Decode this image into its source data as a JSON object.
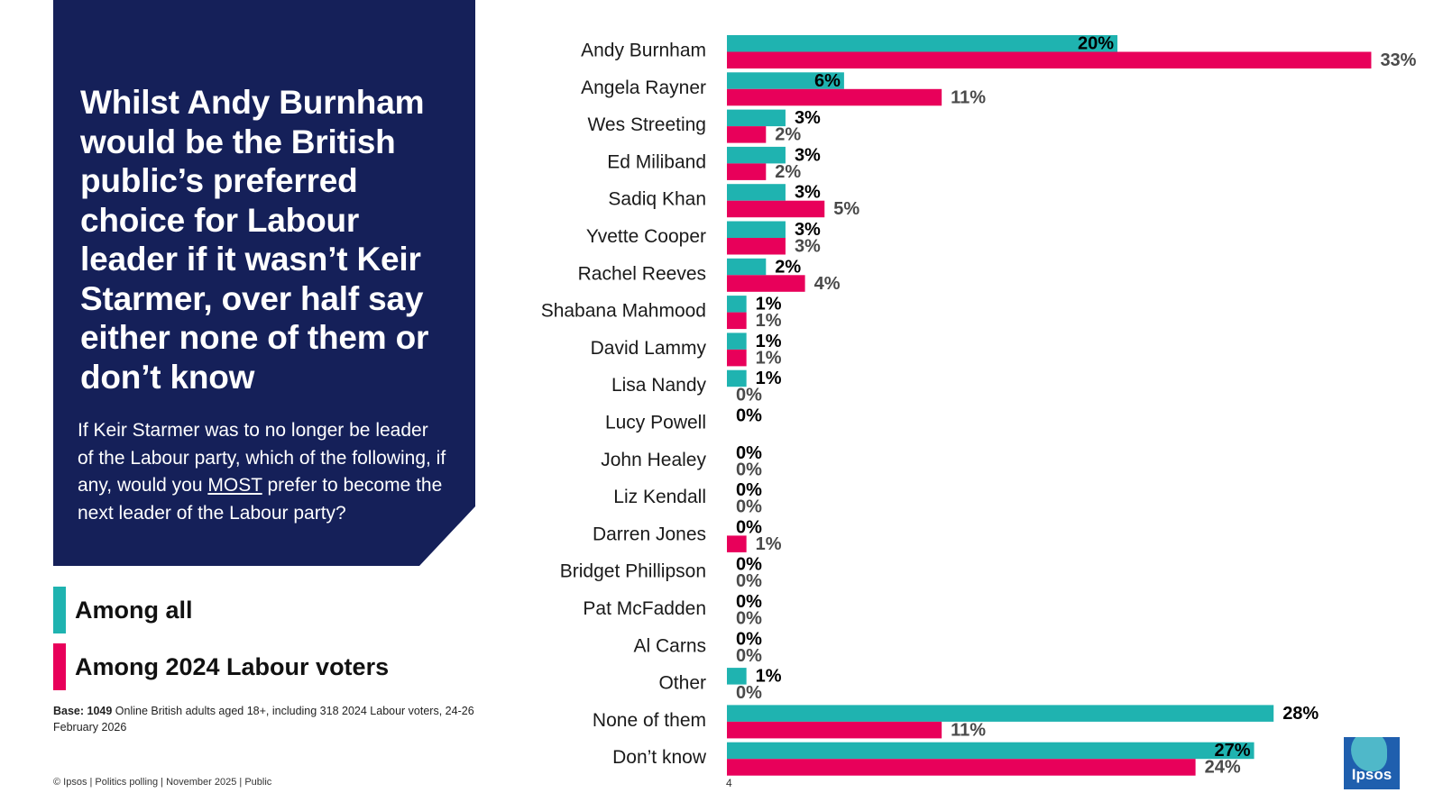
{
  "headline": "Whilst Andy Burnham would be the British public’s preferred choice for Labour leader if it wasn’t Keir Starmer, over half say either none of them or don’t know",
  "question": {
    "before": "If Keir Starmer was to no longer be leader of the Labour party, which of the following, if any, would you ",
    "emphasis": "MOST",
    "after": " prefer to become the next leader of the Labour party?"
  },
  "legend": {
    "all": "Among all",
    "labour": "Among 2024 Labour voters"
  },
  "base": {
    "label": "Base: 1049",
    "text": " Online British adults aged 18+,  including 318 2024 Labour voters, 24-26 February 2026"
  },
  "footer": "© Ipsos | Politics polling | November 2025 | Public",
  "page_number": "4",
  "logo_text": "Ipsos",
  "colors": {
    "all": "#1fb3b0",
    "labour": "#e8005a",
    "panel": "#152059"
  },
  "chart_data": {
    "type": "bar",
    "orientation": "horizontal",
    "categories": [
      "Andy Burnham",
      "Angela Rayner",
      "Wes Streeting",
      "Ed Miliband",
      "Sadiq Khan",
      "Yvette Cooper",
      "Rachel Reeves",
      "Shabana Mahmood",
      "David Lammy",
      "Lisa Nandy",
      "Lucy Powell",
      "John Healey",
      "Liz Kendall",
      "Darren Jones",
      "Bridget Phillipson",
      "Pat McFadden",
      "Al Carns",
      "Other",
      "None of them",
      "Don’t know"
    ],
    "series": [
      {
        "name": "Among all",
        "values": [
          20,
          6,
          3,
          3,
          3,
          3,
          2,
          1,
          1,
          1,
          0,
          0,
          0,
          0,
          0,
          0,
          0,
          1,
          28,
          27
        ],
        "labels": [
          "20%",
          "6%",
          "3%",
          "3%",
          "3%",
          "3%",
          "2%",
          "1%",
          "1%",
          "1%",
          "0%",
          "0%",
          "0%",
          "0%",
          "0%",
          "0%",
          "0%",
          "1%",
          "28%",
          "27%"
        ]
      },
      {
        "name": "Among 2024 Labour voters",
        "values": [
          33,
          11,
          2,
          2,
          5,
          3,
          4,
          1,
          1,
          0,
          null,
          0,
          0,
          1,
          0,
          0,
          0,
          0,
          11,
          24
        ],
        "labels": [
          "33%",
          "11%",
          "2%",
          "2%",
          "5%",
          "3%",
          "4%",
          "1%",
          "1%",
          "0%",
          null,
          "0%",
          "0%",
          "1%",
          "0%",
          "0%",
          "0%",
          "0%",
          "11%",
          "24%"
        ]
      }
    ],
    "xlim": [
      0,
      33
    ],
    "unit": "%"
  }
}
